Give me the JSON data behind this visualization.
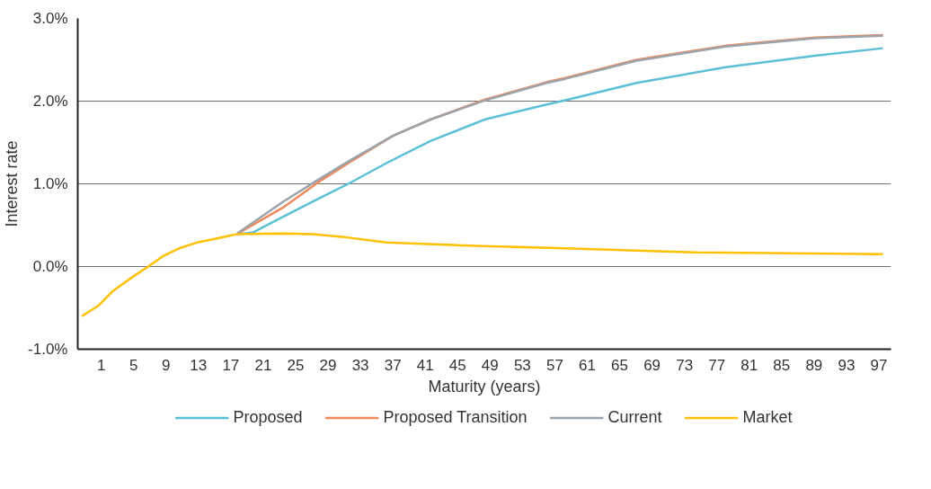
{
  "chart_data": {
    "type": "line",
    "xlabel": "Maturity (years)",
    "ylabel": "Interest rate",
    "xlim": [
      -1.9,
      98.5
    ],
    "xticks": [
      1,
      5,
      9,
      13,
      17,
      21,
      25,
      29,
      33,
      37,
      41,
      45,
      49,
      53,
      57,
      61,
      65,
      69,
      73,
      77,
      81,
      85,
      89,
      93,
      97
    ],
    "ylim": [
      -1.0,
      3.0
    ],
    "yticks": [
      {
        "value": -1.0,
        "label": "-1.0%"
      },
      {
        "value": 0.0,
        "label": "0.0%"
      },
      {
        "value": 1.0,
        "label": "1.0%"
      },
      {
        "value": 2.0,
        "label": "2.0%"
      },
      {
        "value": 3.0,
        "label": "3.0%"
      }
    ],
    "grid": "y",
    "legend": "bottom",
    "marker": "none",
    "line_style": "solid",
    "series": [
      {
        "name": "Proposed",
        "color": "#5bc0d6",
        "x": [
          17.7,
          19.7,
          23.4,
          27.8,
          31.5,
          36.2,
          41.7,
          48.4,
          56,
          58.3,
          67.1,
          78.1,
          89.1,
          97.5
        ],
        "values": [
          0.39,
          0.41,
          0.6,
          0.82,
          1.0,
          1.25,
          1.52,
          1.78,
          1.96,
          2.01,
          2.22,
          2.41,
          2.55,
          2.64
        ]
      },
      {
        "name": "Proposed Transition",
        "color": "#f08a5d",
        "x": [
          17.7,
          23.4,
          27.8,
          31.5,
          37,
          41.7,
          48.4,
          56,
          58.3,
          67.1,
          78.1,
          89.1,
          97.5
        ],
        "values": [
          0.39,
          0.71,
          1.02,
          1.25,
          1.58,
          1.78,
          2.02,
          2.23,
          2.28,
          2.5,
          2.67,
          2.77,
          2.8
        ]
      },
      {
        "name": "Current",
        "color": "#9ba3ab",
        "x": [
          17.8,
          23.4,
          27.8,
          31.5,
          37,
          41.7,
          48.4,
          56,
          58.3,
          67.1,
          78.1,
          89.1,
          97.5
        ],
        "values": [
          0.4,
          0.78,
          1.05,
          1.27,
          1.58,
          1.78,
          2.01,
          2.22,
          2.27,
          2.49,
          2.66,
          2.76,
          2.79
        ]
      },
      {
        "name": "Market",
        "color": "#ffc000",
        "x": [
          -1.4,
          0.7,
          2.4,
          5.1,
          6.8,
          8.7,
          10.6,
          12.8,
          15.3,
          17.7,
          23.4,
          27.1,
          30.7,
          36.2,
          47.3,
          58.3,
          74.5,
          97.5
        ],
        "values": [
          -0.6,
          -0.47,
          -0.3,
          -0.11,
          0.0,
          0.13,
          0.22,
          0.29,
          0.34,
          0.39,
          0.4,
          0.39,
          0.36,
          0.29,
          0.25,
          0.22,
          0.17,
          0.15
        ]
      }
    ]
  }
}
